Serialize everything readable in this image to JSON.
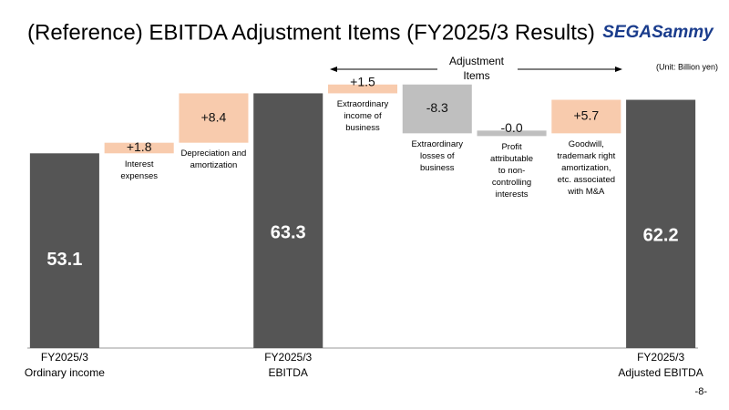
{
  "slide": {
    "logo": "SEGASammy",
    "page": "-8-"
  },
  "chart_data": {
    "type": "waterfall",
    "title": "(Reference) EBITDA Adjustment Items (FY2025/3 Results)",
    "unit": "(Unit: Billion yen)",
    "bracket_label": [
      "Adjustment",
      "Items"
    ],
    "categories": [
      [
        "FY2025/3",
        "Ordinary income"
      ],
      [
        "Interest",
        "expenses"
      ],
      [
        "Depreciation and",
        "amortization"
      ],
      [
        "FY2025/3",
        "EBITDA"
      ],
      [
        "Extraordinary",
        "income of",
        "business"
      ],
      [
        "Extraordinary",
        "losses of",
        "business"
      ],
      [
        "Profit",
        "attributable",
        "to non-",
        "controlling",
        "interests"
      ],
      [
        "Goodwill,",
        "trademark right",
        "amortization,",
        "etc. associated",
        "with M&A"
      ],
      [
        "FY2025/3",
        "Adjusted EBITDA"
      ]
    ],
    "measure": [
      "absolute",
      "relative",
      "relative",
      "absolute",
      "relative",
      "relative",
      "relative",
      "relative",
      "absolute"
    ],
    "values": [
      53.1,
      1.8,
      8.4,
      63.3,
      1.5,
      -8.3,
      -0.0,
      5.7,
      62.2
    ],
    "value_labels": [
      "53.1",
      "+1.8",
      "+8.4",
      "63.3",
      "+1.5",
      "-8.3",
      "-0.0",
      "+5.7",
      "62.2"
    ],
    "colors": [
      "#555555",
      "#f8cbad",
      "#f8cbad",
      "#555555",
      "#f8cbad",
      "#bfbfbf",
      "#bfbfbf",
      "#f8cbad",
      "#555555"
    ],
    "ylim": [
      20,
      66
    ]
  }
}
